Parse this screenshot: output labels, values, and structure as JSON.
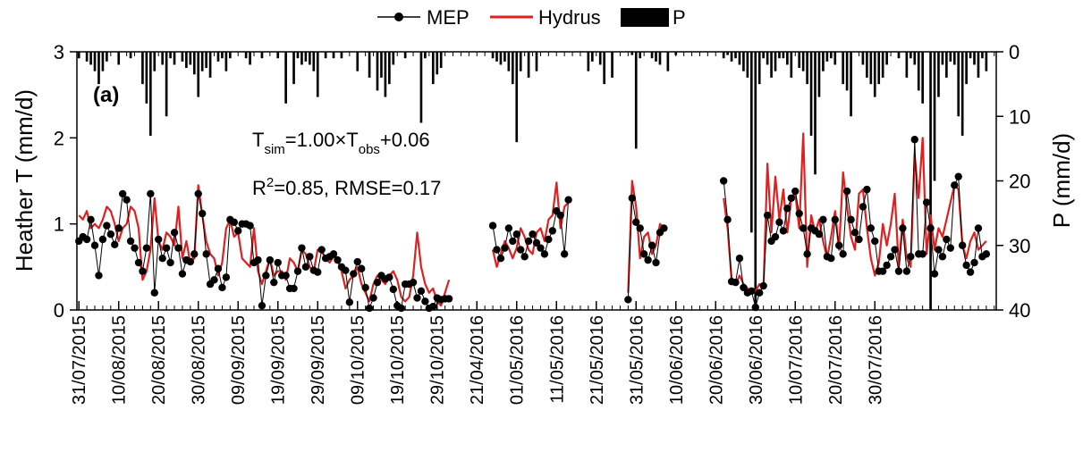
{
  "chart_data": {
    "type": "line",
    "panel_label": "(a)",
    "legend": [
      "MEP",
      "Hydrus",
      "P"
    ],
    "ylabel_left": "Heather T (mm/d)",
    "ylabel_right": "P (mm/d)",
    "ylim_left": [
      0,
      3
    ],
    "ylim_right_inverted": [
      40,
      0
    ],
    "yticks_left": [
      "0",
      "1",
      "2",
      "3"
    ],
    "yticks_right": [
      "0",
      "10",
      "20",
      "30",
      "40"
    ],
    "annotation": {
      "eq_T1": "T",
      "eq_sub1": "sim",
      "eq_mid": "=1.00×T",
      "eq_sub2": "obs",
      "eq_end": "+0.06",
      "r2_R": "R",
      "r2_sup": "2",
      "r2_rest": "=0.85, RMSE=0.17"
    },
    "x_ticks": [
      "31/07/2015",
      "10/08/2015",
      "20/08/2015",
      "30/08/2015",
      "09/09/2015",
      "19/09/2015",
      "29/09/2015",
      "09/10/2015",
      "19/10/2015",
      "29/10/2015",
      "21/04/2016",
      "01/05/2016",
      "11/05/2016",
      "21/05/2016",
      "31/05/2016",
      "10/06/2016",
      "20/06/2016",
      "30/06/2016",
      "10/07/2016",
      "20/07/2016",
      "30/07/2016"
    ],
    "colors": {
      "MEP": "#000000",
      "Hydrus": "#e02020",
      "P": "#000000"
    },
    "segments": [
      {
        "x_start": 0,
        "mep": [
          0.8,
          0.85,
          0.82,
          1.05,
          0.75,
          0.4,
          0.82,
          0.98,
          0.88,
          0.76,
          0.95,
          1.35,
          1.28,
          0.8,
          0.72,
          0.55,
          0.45,
          0.72,
          1.35,
          0.2,
          0.82,
          0.6,
          0.72,
          0.55,
          0.9,
          0.72,
          0.42,
          0.58,
          0.56,
          0.65,
          1.35,
          1.12,
          0.65,
          0.3,
          0.35,
          0.48,
          0.26,
          0.38,
          1.05,
          1.02,
          0.92,
          1.0,
          1.0,
          0.98,
          0.55,
          0.58,
          0.05,
          0.4,
          0.58,
          0.32,
          0.55,
          0.4,
          0.4,
          0.25,
          0.25,
          0.45,
          0.72,
          0.5,
          0.62,
          0.46,
          0.44,
          0.7,
          0.6,
          0.62,
          0.65,
          0.58,
          0.5,
          0.46,
          0.09,
          0.42,
          0.56,
          0.48,
          0.26,
          0.02,
          0.14,
          0.32,
          0.4,
          0.36,
          0.38,
          0.24,
          0.05,
          0.02,
          0.3,
          0.3,
          0.32,
          0.14,
          0.22,
          0.1,
          0.02,
          0.04,
          0.14,
          0.12,
          0.13,
          0.13
        ],
        "hydrus": [
          1.1,
          1.05,
          1.15,
          0.95,
          1.0,
          0.95,
          1.05,
          1.2,
          1.15,
          1.0,
          0.8,
          0.95,
          1.0,
          1.2,
          1.15,
          0.95,
          0.35,
          0.45,
          0.7,
          1.3,
          0.8,
          0.7,
          0.9,
          0.85,
          0.75,
          1.2,
          0.6,
          0.8,
          0.55,
          0.6,
          1.45,
          1.1,
          0.8,
          0.65,
          0.6,
          0.4,
          0.55,
          0.95,
          1.05,
          0.85,
          0.9,
          0.6,
          0.55,
          0.5,
          0.95,
          0.45,
          0.3,
          0.45,
          0.6,
          0.4,
          0.45,
          0.45,
          0.35,
          0.6,
          0.55,
          0.45,
          0.7,
          0.65,
          0.5,
          0.45,
          0.7,
          0.68,
          0.6,
          0.55,
          0.62,
          0.58,
          0.45,
          0.25,
          0.35,
          0.4,
          0.5,
          0.3,
          0.2,
          0.1,
          0.3,
          0.4,
          0.35,
          0.3,
          0.4,
          0.45,
          0.35,
          0.15,
          0.1,
          0.15,
          0.4,
          0.9,
          0.5,
          0.3,
          0.2,
          0.25,
          0.1,
          0.05,
          0.2,
          0.35
        ]
      },
      {
        "x_start": 104,
        "mep": [
          0.98,
          0.7,
          0.6,
          0.72,
          0.95,
          0.8,
          0.88,
          0.7,
          0.62,
          0.8,
          0.88,
          0.78,
          0.72,
          0.65,
          0.82,
          0.92,
          1.15,
          1.1,
          0.65,
          1.28
        ],
        "hydrus": [
          0.7,
          0.5,
          0.65,
          0.8,
          0.72,
          0.6,
          0.72,
          0.95,
          0.85,
          0.7,
          0.65,
          0.9,
          0.95,
          0.8,
          1.05,
          1.1,
          1.48,
          0.95,
          1.2,
          1.25
        ]
      },
      {
        "x_start": 138,
        "mep": [
          0.12,
          1.3,
          1.02,
          0.95,
          0.65,
          0.58,
          0.75,
          0.55,
          0.9,
          0.95
        ],
        "hydrus": [
          0.2,
          1.5,
          1.2,
          0.6,
          0.85,
          0.9,
          0.65,
          0.75,
          1.0,
          0.95
        ]
      },
      {
        "x_start": 162,
        "mep": [
          1.5,
          1.05,
          0.33,
          0.32,
          0.6,
          0.26,
          0.2,
          0.22,
          0.03,
          0.2,
          0.28,
          1.1,
          0.8,
          0.85,
          1.02,
          0.92,
          1.18,
          1.3,
          1.38,
          1.12,
          0.95,
          0.65,
          0.95,
          0.92,
          0.88,
          1.05,
          0.62,
          0.6,
          1.05,
          0.75,
          0.65,
          1.38,
          1.05,
          0.9,
          0.82,
          1.2,
          1.4,
          0.95,
          0.8,
          0.45,
          0.45,
          0.52,
          0.62,
          0.7,
          0.45,
          0.95,
          0.45,
          0.62,
          1.98,
          0.65,
          0.65,
          1.25,
          0.95,
          0.42,
          0.7,
          0.62,
          0.82,
          0.72,
          1.45,
          1.55,
          0.75,
          0.52,
          0.44,
          0.55,
          0.95,
          0.62,
          0.65
        ],
        "hydrus": [
          1.3,
          0.95,
          0.35,
          0.3,
          0.4,
          0.3,
          0.25,
          0.2,
          0.22,
          0.3,
          0.25,
          1.7,
          0.9,
          1.55,
          1.05,
          1.4,
          0.9,
          1.3,
          1.35,
          0.95,
          2.05,
          0.5,
          1.1,
          0.9,
          1.05,
          0.8,
          0.6,
          0.85,
          1.15,
          0.7,
          1.6,
          1.2,
          0.85,
          0.7,
          1.35,
          1.4,
          0.95,
          0.6,
          0.4,
          0.55,
          1.0,
          0.75,
          1.0,
          1.35,
          0.5,
          1.05,
          0.6,
          0.5,
          1.8,
          1.3,
          2.0,
          0.65,
          1.1,
          0.7,
          0.95,
          0.85,
          1.05,
          1.25,
          1.45,
          1.4,
          0.75,
          0.6,
          0.8,
          0.9,
          0.7,
          0.75,
          0.8
        ]
      }
    ],
    "precip": [
      [
        0,
        1
      ],
      [
        2,
        1.5
      ],
      [
        3,
        2
      ],
      [
        4,
        3
      ],
      [
        5,
        5
      ],
      [
        6,
        3
      ],
      [
        7,
        1.5
      ],
      [
        10,
        2
      ],
      [
        13,
        1
      ],
      [
        16,
        5
      ],
      [
        17,
        8
      ],
      [
        18,
        13
      ],
      [
        19,
        3
      ],
      [
        21,
        2
      ],
      [
        22,
        10
      ],
      [
        23,
        1
      ],
      [
        24,
        2
      ],
      [
        26,
        1.5
      ],
      [
        27,
        2.5
      ],
      [
        28,
        2
      ],
      [
        29,
        3.5
      ],
      [
        30,
        7
      ],
      [
        31,
        3
      ],
      [
        32,
        2.5
      ],
      [
        33,
        4
      ],
      [
        35,
        1.5
      ],
      [
        36,
        1
      ],
      [
        37,
        3
      ],
      [
        38,
        1
      ],
      [
        42,
        1
      ],
      [
        43,
        2
      ],
      [
        46,
        1
      ],
      [
        50,
        1
      ],
      [
        52,
        8
      ],
      [
        54,
        5
      ],
      [
        55,
        1
      ],
      [
        56,
        2
      ],
      [
        57,
        1.5
      ],
      [
        58,
        2
      ],
      [
        59,
        3
      ],
      [
        60,
        7
      ],
      [
        62,
        1
      ],
      [
        64,
        1
      ],
      [
        66,
        1
      ],
      [
        70,
        3
      ],
      [
        73,
        4
      ],
      [
        75,
        6
      ],
      [
        76,
        4
      ],
      [
        77,
        7
      ],
      [
        78,
        5
      ],
      [
        79,
        2
      ],
      [
        82,
        1
      ],
      [
        86,
        11
      ],
      [
        87,
        1
      ],
      [
        89,
        5
      ],
      [
        90,
        3.5
      ],
      [
        91,
        2.5
      ],
      [
        104,
        1
      ],
      [
        105,
        1.5
      ],
      [
        106,
        2
      ],
      [
        107,
        1.5
      ],
      [
        108,
        3
      ],
      [
        109,
        5
      ],
      [
        110,
        14
      ],
      [
        111,
        3
      ],
      [
        113,
        4
      ],
      [
        115,
        3
      ],
      [
        128,
        3
      ],
      [
        129,
        1.5
      ],
      [
        131,
        2
      ],
      [
        132,
        5
      ],
      [
        134,
        4
      ],
      [
        139,
        0.5
      ],
      [
        140,
        15
      ],
      [
        141,
        1
      ],
      [
        144,
        1
      ],
      [
        145,
        1.5
      ],
      [
        146,
        2
      ],
      [
        148,
        3
      ],
      [
        150,
        0.5
      ],
      [
        162,
        1
      ],
      [
        163,
        0.5
      ],
      [
        164,
        1.5
      ],
      [
        165,
        1
      ],
      [
        166,
        2
      ],
      [
        167,
        3
      ],
      [
        168,
        4
      ],
      [
        169,
        28
      ],
      [
        170,
        40
      ],
      [
        171,
        5
      ],
      [
        172,
        1
      ],
      [
        173,
        2
      ],
      [
        174,
        4
      ],
      [
        175,
        3
      ],
      [
        176,
        1
      ],
      [
        177,
        1
      ],
      [
        178,
        2
      ],
      [
        179,
        4
      ],
      [
        181,
        2.5
      ],
      [
        182,
        3
      ],
      [
        183,
        5
      ],
      [
        184,
        13
      ],
      [
        185,
        19
      ],
      [
        186,
        7
      ],
      [
        187,
        3
      ],
      [
        188,
        1.5
      ],
      [
        189,
        1
      ],
      [
        190,
        2
      ],
      [
        192,
        5
      ],
      [
        193,
        6
      ],
      [
        194,
        10
      ],
      [
        197,
        2
      ],
      [
        198,
        4
      ],
      [
        199,
        5
      ],
      [
        200,
        7
      ],
      [
        201,
        5
      ],
      [
        202,
        4
      ],
      [
        203,
        2
      ],
      [
        206,
        1
      ],
      [
        208,
        4
      ],
      [
        209,
        1
      ],
      [
        210,
        2
      ],
      [
        211,
        6
      ],
      [
        212,
        8
      ],
      [
        214,
        40
      ],
      [
        215,
        20
      ],
      [
        216,
        7
      ],
      [
        217,
        2
      ],
      [
        218,
        4
      ],
      [
        219,
        1.5
      ],
      [
        220,
        2
      ],
      [
        221,
        10
      ],
      [
        222,
        13
      ],
      [
        223,
        5
      ],
      [
        224,
        1
      ],
      [
        225,
        2
      ],
      [
        226,
        4
      ],
      [
        227,
        1
      ],
      [
        228,
        3
      ]
    ]
  }
}
